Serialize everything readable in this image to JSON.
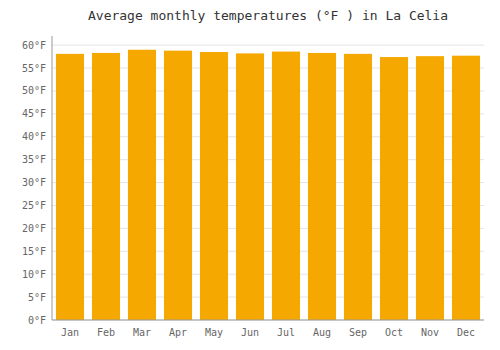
{
  "chart_data": {
    "type": "bar",
    "title": "Average monthly temperatures (°F ) in La Celia",
    "categories": [
      "Jan",
      "Feb",
      "Mar",
      "Apr",
      "May",
      "Jun",
      "Jul",
      "Aug",
      "Sep",
      "Oct",
      "Nov",
      "Dec"
    ],
    "values": [
      58.1,
      58.3,
      59.0,
      58.8,
      58.5,
      58.2,
      58.6,
      58.3,
      58.1,
      57.4,
      57.6,
      57.7
    ],
    "color": "#F5A800",
    "ylim": [
      0,
      62
    ],
    "yticks": [
      {
        "value": 0,
        "label": "0°F"
      },
      {
        "value": 5,
        "label": "5°F"
      },
      {
        "value": 10,
        "label": "10°F"
      },
      {
        "value": 15,
        "label": "15°F"
      },
      {
        "value": 20,
        "label": "20°F"
      },
      {
        "value": 25,
        "label": "25°F"
      },
      {
        "value": 30,
        "label": "30°F"
      },
      {
        "value": 35,
        "label": "35°F"
      },
      {
        "value": 40,
        "label": "40°F"
      },
      {
        "value": 45,
        "label": "45°F"
      },
      {
        "value": 50,
        "label": "50°F"
      },
      {
        "value": 55,
        "label": "55°F"
      },
      {
        "value": 60,
        "label": "60°F"
      }
    ],
    "grid": true
  }
}
